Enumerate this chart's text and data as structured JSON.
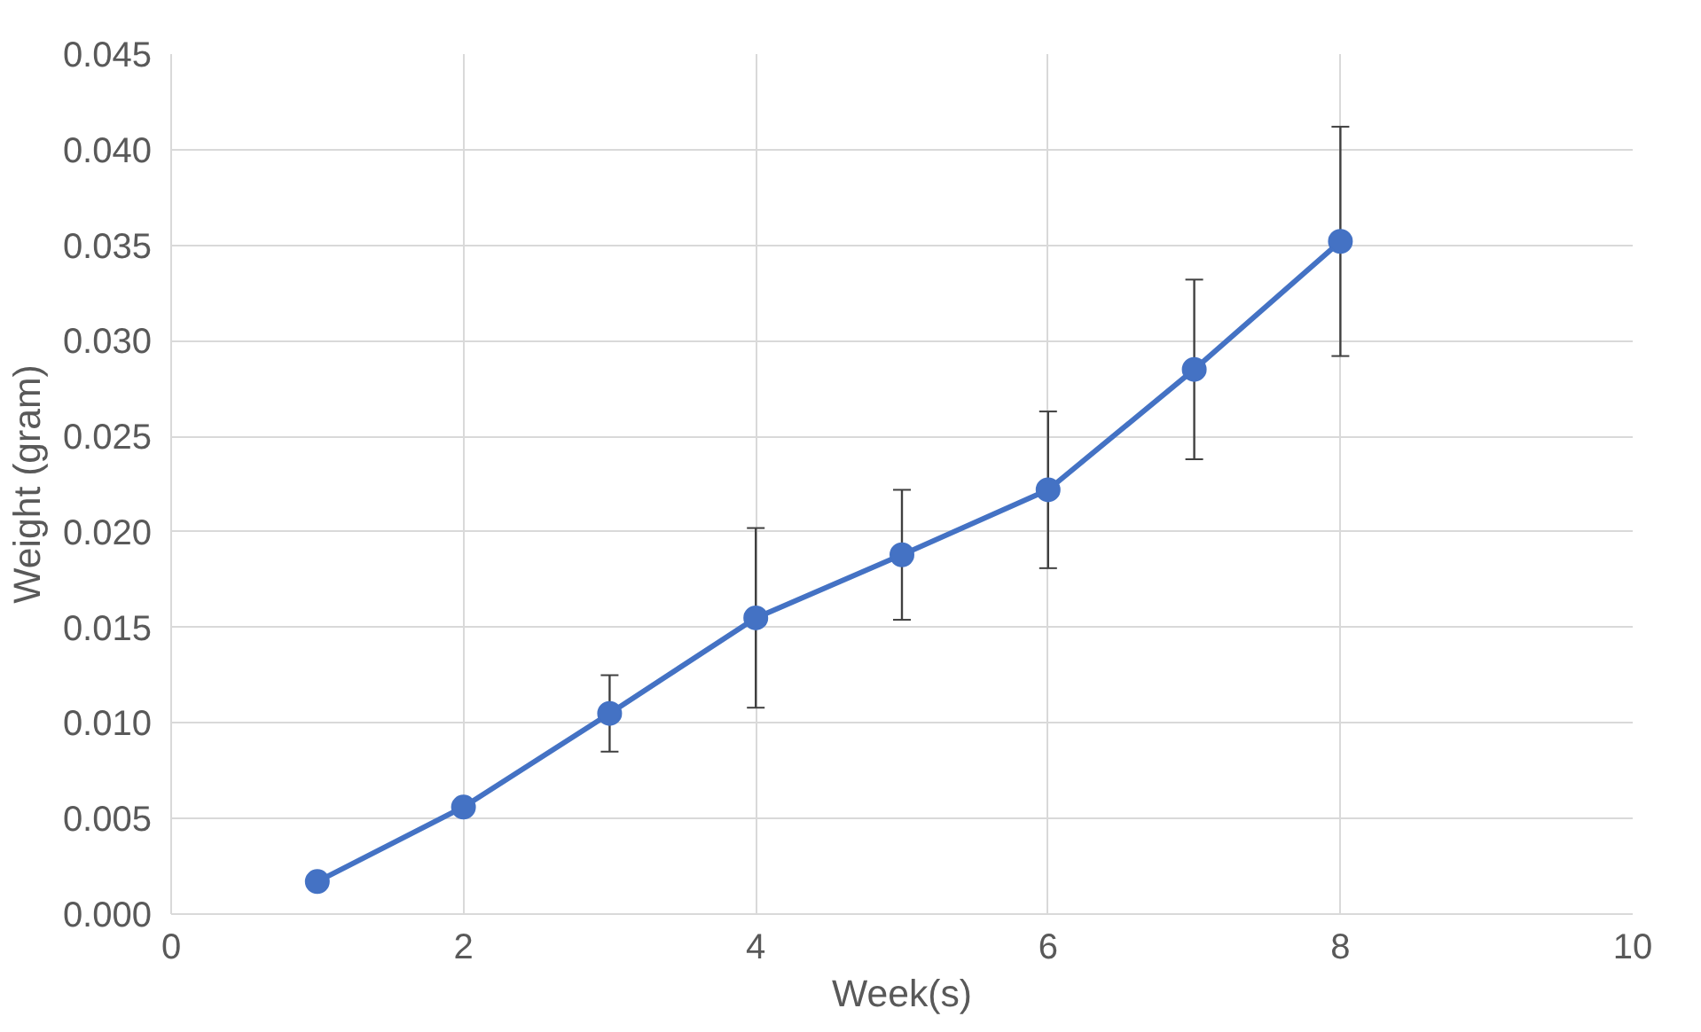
{
  "chart_data": {
    "type": "line",
    "xlabel": "Week(s)",
    "ylabel": "Weight (gram)",
    "x": [
      1,
      2,
      3,
      4,
      5,
      6,
      7,
      8
    ],
    "series": [
      {
        "color": "#4472c4",
        "values": [
          0.0017,
          0.0056,
          0.0105,
          0.0155,
          0.0188,
          0.0222,
          0.0285,
          0.0352
        ],
        "errors": [
          null,
          null,
          0.002,
          0.0047,
          0.0034,
          0.0041,
          0.0047,
          0.006
        ]
      }
    ],
    "xlim": [
      0,
      10
    ],
    "xticks": [
      0,
      2,
      4,
      6,
      8,
      10
    ],
    "ylim": [
      0,
      0.045
    ],
    "yticks": [
      {
        "value": 0,
        "label": "0.000"
      },
      {
        "value": 0.005,
        "label": "0.005"
      },
      {
        "value": 0.01,
        "label": "0.010"
      },
      {
        "value": 0.015,
        "label": "0.015"
      },
      {
        "value": 0.02,
        "label": "0.020"
      },
      {
        "value": 0.025,
        "label": "0.025"
      },
      {
        "value": 0.03,
        "label": "0.030"
      },
      {
        "value": 0.035,
        "label": "0.035"
      },
      {
        "value": 0.04,
        "label": "0.040"
      },
      {
        "value": 0.045,
        "label": "0.045"
      }
    ],
    "grid": true,
    "marker": "circle",
    "line_style": "solid"
  }
}
